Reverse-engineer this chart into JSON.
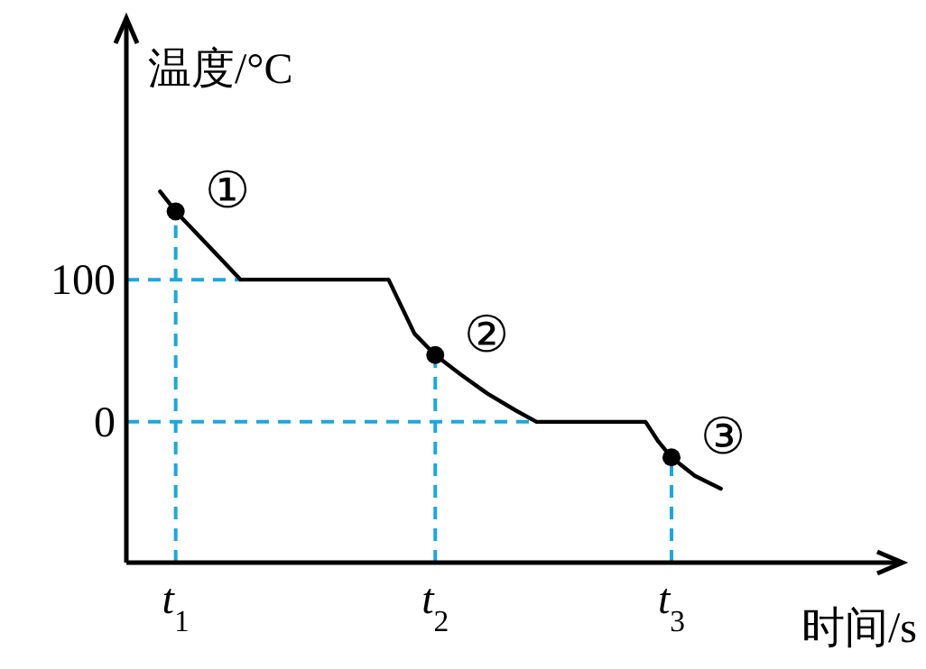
{
  "chart_data": {
    "type": "line",
    "ylabel": "温度/°C",
    "xlabel": "时间/s",
    "xlim": [
      0.81,
      3.8
    ],
    "ylim": [
      -99,
      284
    ],
    "xticks": [
      {
        "value": 1,
        "label": "t$_{1}$"
      },
      {
        "value": 2,
        "label": "t$_{2}$"
      },
      {
        "value": 2.91,
        "label": "t$_{3}$"
      }
    ],
    "yticks": [
      0,
      100
    ],
    "series": [
      {
        "color": "#000000",
        "x": [
          0.94,
          1.0,
          1.25,
          1.82,
          1.87,
          1.92,
          2.0,
          2.1,
          2.2,
          2.31,
          2.39,
          2.81,
          2.86,
          2.91,
          3.0,
          3.1
        ],
        "values": [
          162,
          148,
          100,
          100,
          81,
          62,
          47,
          33,
          20,
          8,
          0,
          0,
          -14,
          -25,
          -38,
          -47
        ],
        "marker": "none",
        "line_style": "solid"
      },
      {
        "type": "scatter",
        "color": "#000000",
        "x": [
          1.0,
          2.0,
          2.91
        ],
        "values": [
          148,
          47,
          -25
        ],
        "marker": "circle"
      }
    ],
    "ref_lines": [
      {
        "axis": "y",
        "value": 100,
        "color": "#1ea6dc",
        "line_style": "dashed"
      },
      {
        "axis": "y",
        "value": 0,
        "color": "#1ea6dc",
        "line_style": "dashed"
      },
      {
        "axis": "x",
        "value": 1,
        "color": "#1ea6dc",
        "line_style": "dashed"
      },
      {
        "axis": "x",
        "value": 2,
        "color": "#1ea6dc",
        "line_style": "dashed"
      },
      {
        "axis": "x",
        "value": 2.91,
        "color": "#1ea6dc",
        "line_style": "dashed"
      }
    ],
    "annotations": [
      {
        "text": "①",
        "x": 1.0,
        "y": 148
      },
      {
        "text": "②",
        "x": 2.0,
        "y": 47
      },
      {
        "text": "③",
        "x": 2.91,
        "y": -25
      }
    ]
  }
}
